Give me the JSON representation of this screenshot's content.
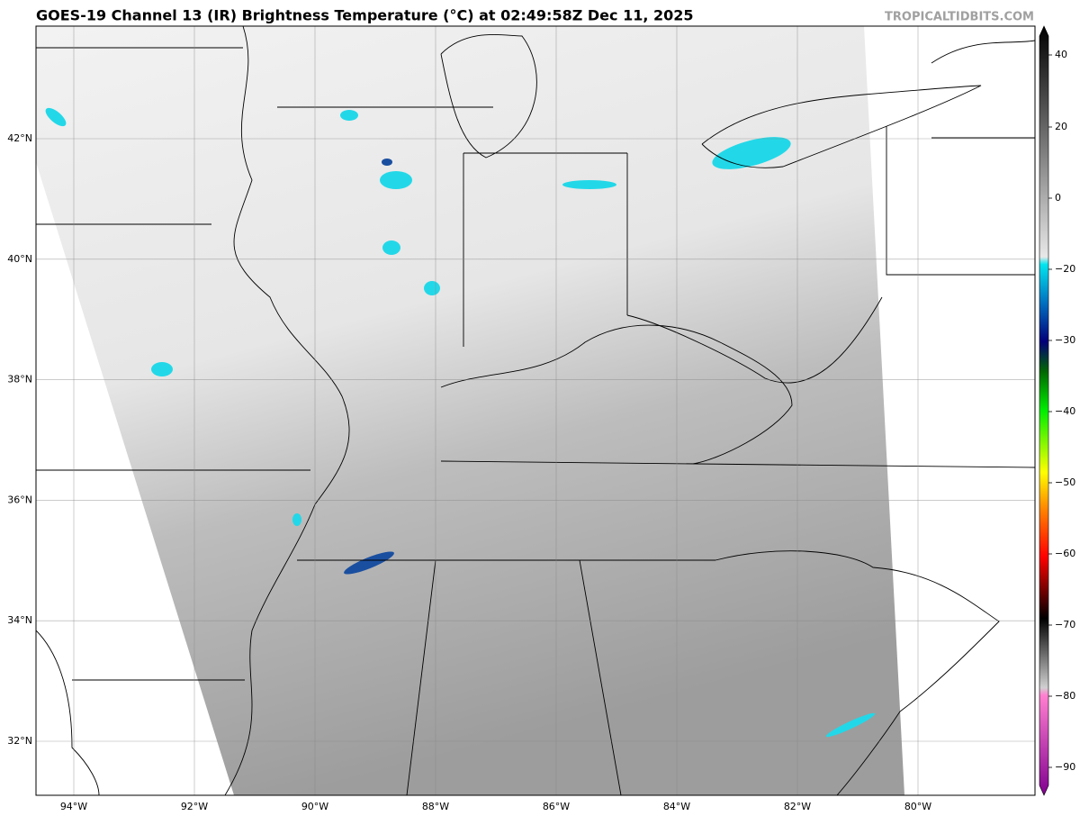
{
  "header": {
    "title": "GOES-19 Channel 13 (IR) Brightness Temperature (°C) at 02:49:58Z Dec 11, 2025",
    "credit": "TROPICALTIDBITS.COM"
  },
  "map": {
    "lon_labels": [
      "94°W",
      "92°W",
      "90°W",
      "88°W",
      "86°W",
      "84°W",
      "82°W",
      "80°W"
    ],
    "lat_labels": [
      "42°N",
      "40°N",
      "38°N",
      "36°N",
      "34°N",
      "32°N"
    ]
  },
  "colorbar": {
    "labels": [
      "40",
      "20",
      "0",
      "−20",
      "−30",
      "−40",
      "−50",
      "−60",
      "−70",
      "−80",
      "−90"
    ]
  }
}
